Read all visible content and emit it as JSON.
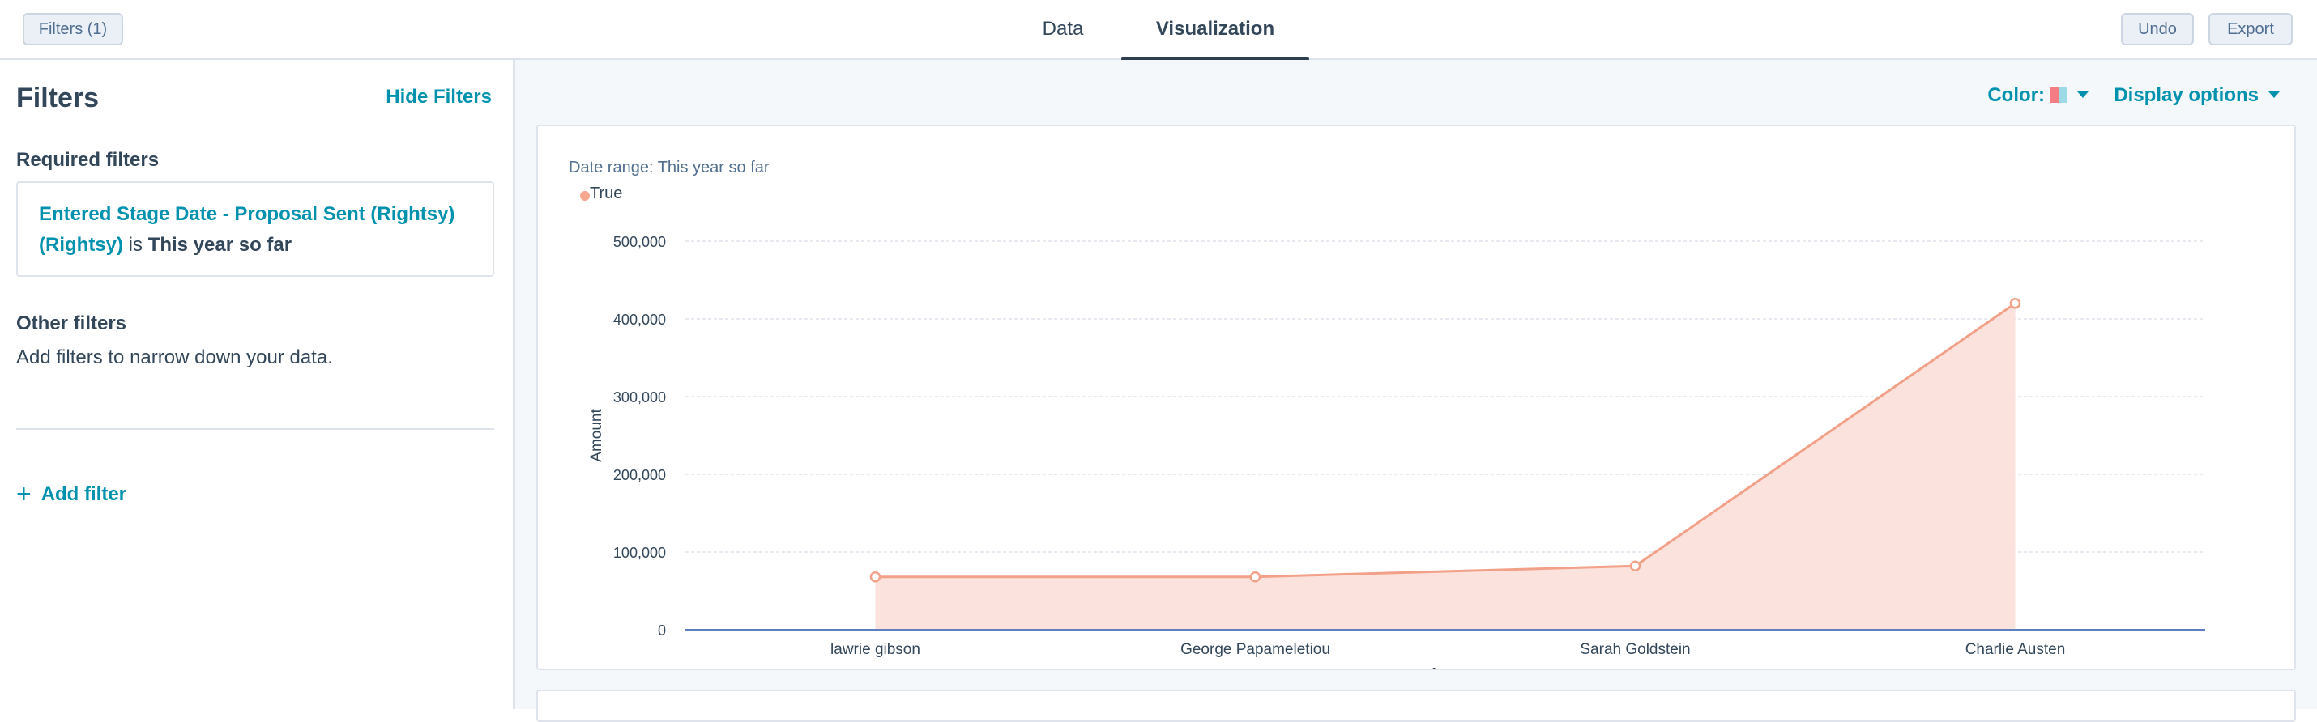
{
  "toolbar": {
    "filters_button": "Filters (1)",
    "tabs": [
      {
        "label": "Data",
        "active": false
      },
      {
        "label": "Visualization",
        "active": true
      }
    ],
    "undo_label": "Undo",
    "export_label": "Export"
  },
  "filters_panel": {
    "title": "Filters",
    "hide_label": "Hide Filters",
    "required_heading": "Required filters",
    "required_filter": {
      "property": "Entered Stage Date - Proposal Sent (Rightsy) (Rightsy)",
      "operator": "is",
      "value": "This year so far"
    },
    "other_heading": "Other filters",
    "other_text": "Add filters to narrow down your data.",
    "add_filter_label": "Add filter"
  },
  "viz_controls": {
    "color_label": "Color:",
    "display_options_label": "Display options"
  },
  "colors": {
    "accent": "#0091ae",
    "series_line": "#f2a088",
    "series_fill": "#fbe2dc",
    "axis_line": "#5f7fbf"
  },
  "chart_data": {
    "type": "area",
    "subtitle": "Date range: This year so far",
    "categories": [
      "lawrie gibson",
      "George Papameletiou",
      "Sarah Goldstein",
      "Charlie Austen"
    ],
    "series": [
      {
        "name": "True",
        "values": [
          68000,
          68000,
          82000,
          420000
        ]
      }
    ],
    "xlabel": "Deal owner",
    "ylabel": "Amount",
    "ylim": [
      0,
      500000
    ],
    "yticks": [
      "0",
      "100,000",
      "200,000",
      "300,000",
      "400,000",
      "500,000"
    ],
    "grid": true,
    "legend": "top-left"
  }
}
